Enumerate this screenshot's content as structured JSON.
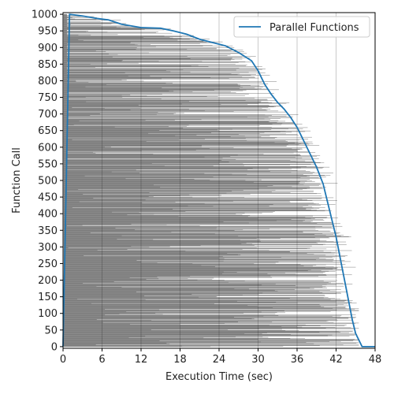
{
  "chart_data": {
    "type": "line",
    "title": "",
    "xlabel": "Execution Time (sec)",
    "ylabel": "Function Call",
    "xlim": [
      0,
      48
    ],
    "ylim": [
      -5,
      1005
    ],
    "xticks": [
      "0",
      "6",
      "12",
      "18",
      "24",
      "30",
      "36",
      "42",
      "48"
    ],
    "yticks": [
      "0",
      "50",
      "100",
      "150",
      "200",
      "250",
      "300",
      "350",
      "400",
      "450",
      "500",
      "550",
      "600",
      "650",
      "700",
      "750",
      "800",
      "850",
      "900",
      "950",
      "1000"
    ],
    "grid": "vertical",
    "legend": {
      "position": "top-right",
      "entries": [
        "Parallel Functions"
      ]
    },
    "series": [
      {
        "name": "Parallel Functions",
        "color": "#1f77b4",
        "x": [
          0.0,
          0.2,
          0.4,
          0.6,
          0.8,
          1.0,
          3.0,
          5.0,
          7.0,
          9.0,
          12.0,
          15.0,
          17.0,
          19.0,
          21.0,
          23.0,
          25.0,
          27.0,
          29.0,
          30.0,
          31.0,
          32.0,
          33.0,
          34.0,
          35.0,
          36.0,
          37.0,
          38.0,
          39.0,
          40.0,
          40.5,
          41.0,
          41.5,
          42.0,
          42.5,
          43.0,
          43.5,
          44.0,
          44.5,
          45.0,
          46.0,
          48.0
        ],
        "y": [
          0,
          200,
          400,
          600,
          800,
          1000,
          995,
          988,
          983,
          970,
          960,
          958,
          950,
          940,
          925,
          915,
          905,
          885,
          860,
          830,
          790,
          760,
          735,
          715,
          690,
          660,
          620,
          580,
          540,
          490,
          450,
          410,
          370,
          330,
          280,
          230,
          180,
          130,
          80,
          40,
          0,
          0
        ]
      }
    ],
    "background_bars": {
      "description_of_data": "one horizontal bar per function call, left edge ~0, right edge = call finish time",
      "count": 1001,
      "color": "#555555"
    }
  }
}
